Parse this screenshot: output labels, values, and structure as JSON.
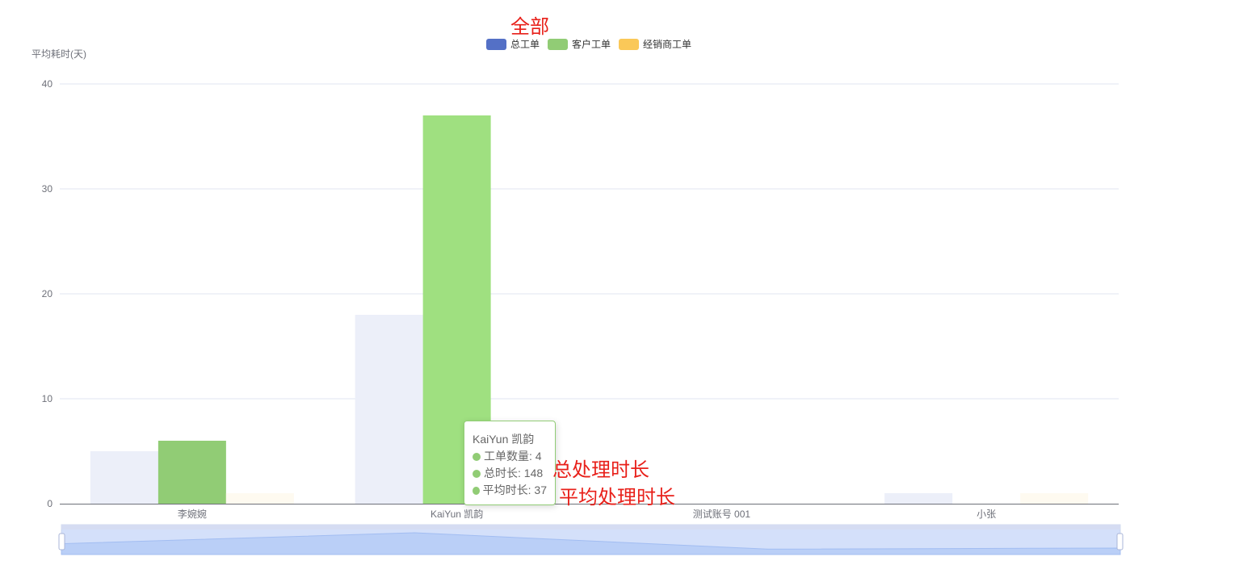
{
  "annotations": {
    "title": "全部",
    "total_label": "总处理时长",
    "avg_label": "平均处理时长"
  },
  "legend": {
    "items": [
      {
        "name": "总工单",
        "color": "#5470c6"
      },
      {
        "name": "客户工单",
        "color": "#91cc75"
      },
      {
        "name": "经销商工单",
        "color": "#fac858"
      }
    ]
  },
  "tooltip": {
    "title": "KaiYun 凯韵",
    "rows": [
      "工单数量: 4",
      "总时长: 148",
      "平均时长: 37"
    ],
    "color": "#91cc75"
  },
  "chart_data": {
    "type": "bar",
    "ylabel": "平均耗时(天)",
    "ylim": [
      0,
      40
    ],
    "yticks": [
      0,
      10,
      20,
      30,
      40
    ],
    "categories": [
      "李婉婉",
      "KaiYun 凯韵",
      "测试账号 001",
      "小张"
    ],
    "series": [
      {
        "name": "总工单",
        "values": [
          5,
          18,
          0,
          1
        ],
        "color": "#eceff9"
      },
      {
        "name": "客户工单",
        "values": [
          6,
          37,
          0,
          0
        ],
        "color": "#91cc75"
      },
      {
        "name": "经销商工单",
        "values": [
          1,
          0,
          0,
          1
        ],
        "color": "#fefaf0"
      }
    ],
    "highlight": {
      "category": 1,
      "series": 1,
      "color": "#9fe080"
    },
    "grid": true,
    "legend_position": "top-center",
    "datazoom_trend": [
      0.35,
      0.85,
      0.1,
      0.15
    ]
  }
}
